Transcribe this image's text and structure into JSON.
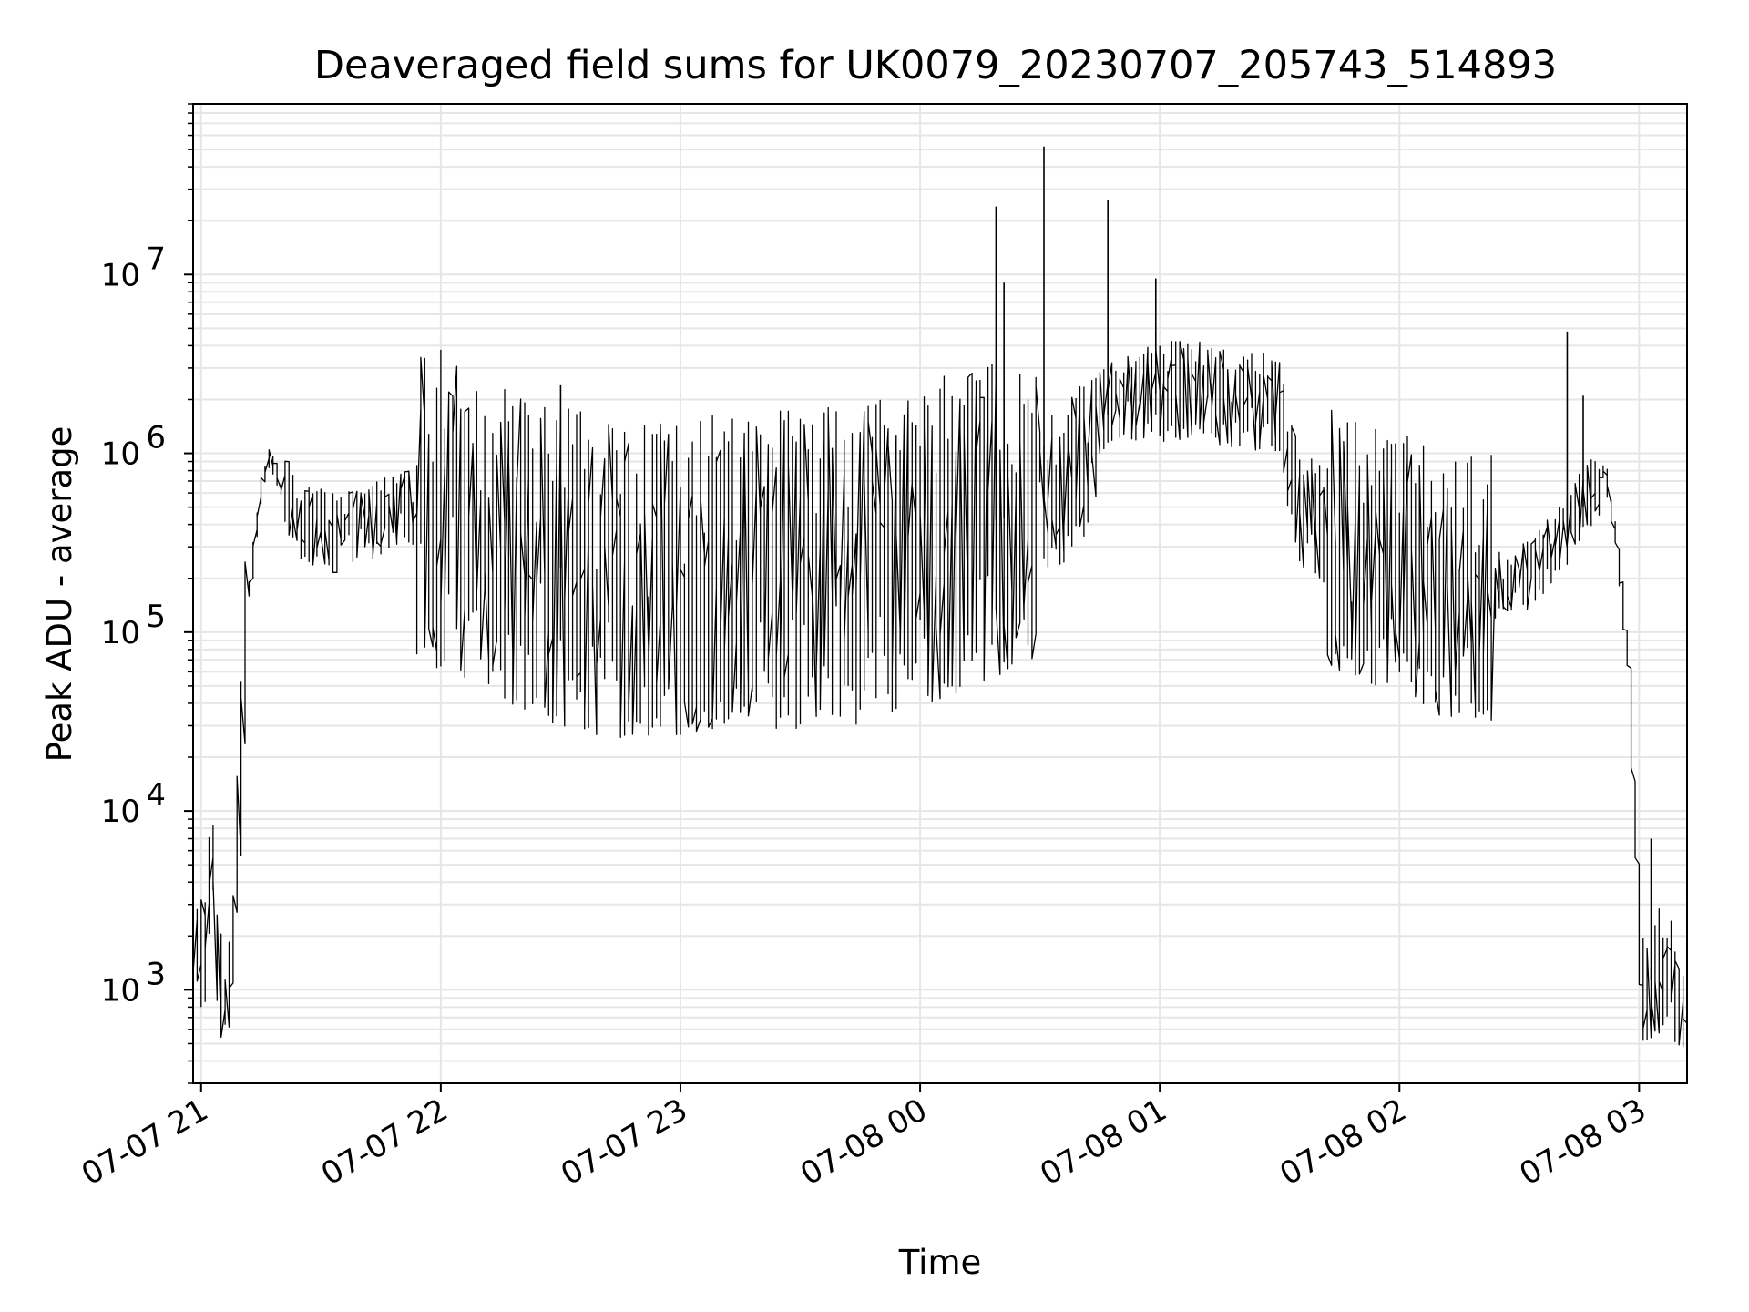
{
  "chart_data": {
    "type": "line",
    "title": "Deaveraged field sums for UK0079_20230707_205743_514893",
    "xlabel": "Time",
    "ylabel": "Peak ADU - average",
    "y_scale": "log",
    "ylim": [
      300,
      90000000
    ],
    "xlim": [
      "2023-07-07 20:58",
      "2023-07-08 03:12"
    ],
    "grid": true,
    "line_color": "#000000",
    "grid_color": "#e6e6e6",
    "x_ticks": [
      {
        "value": "2023-07-07 21:00",
        "label": "07-07 21"
      },
      {
        "value": "2023-07-07 22:00",
        "label": "07-07 22"
      },
      {
        "value": "2023-07-07 23:00",
        "label": "07-07 23"
      },
      {
        "value": "2023-07-08 00:00",
        "label": "07-08 00"
      },
      {
        "value": "2023-07-08 01:00",
        "label": "07-08 01"
      },
      {
        "value": "2023-07-08 02:00",
        "label": "07-08 02"
      },
      {
        "value": "2023-07-08 03:00",
        "label": "07-08 03"
      }
    ],
    "y_ticks": [
      {
        "value": 1000,
        "base": "10",
        "exp": "3"
      },
      {
        "value": 10000,
        "base": "10",
        "exp": "4"
      },
      {
        "value": 100000,
        "base": "10",
        "exp": "5"
      },
      {
        "value": 1000000,
        "base": "10",
        "exp": "6"
      },
      {
        "value": 10000000,
        "base": "10",
        "exp": "7"
      }
    ],
    "series": [
      {
        "points": [
          [
            "2023-07-07 20:58",
            1600
          ],
          [
            "2023-07-07 21:00",
            1700
          ],
          [
            "2023-07-07 21:02",
            1500
          ],
          [
            "2023-07-07 21:03",
            8000
          ],
          [
            "2023-07-07 21:04",
            1900
          ],
          [
            "2023-07-07 21:06",
            900
          ],
          [
            "2023-07-07 21:08",
            1000
          ],
          [
            "2023-07-07 21:10",
            10000
          ],
          [
            "2023-07-07 21:12",
            140000
          ],
          [
            "2023-07-07 21:15",
            500000
          ],
          [
            "2023-07-07 21:17",
            870000
          ],
          [
            "2023-07-07 21:18",
            950000
          ],
          [
            "2023-07-07 21:20",
            650000
          ],
          [
            "2023-07-07 21:25",
            420000
          ],
          [
            "2023-07-07 21:35",
            350000
          ],
          [
            "2023-07-07 21:50",
            500000
          ],
          [
            "2023-07-07 22:00",
            500000
          ],
          [
            "2023-07-07 22:15",
            300000
          ],
          [
            "2023-07-07 22:30",
            230000
          ],
          [
            "2023-07-07 22:45",
            200000
          ],
          [
            "2023-07-07 23:00",
            210000
          ],
          [
            "2023-07-07 23:15",
            230000
          ],
          [
            "2023-07-07 23:30",
            230000
          ],
          [
            "2023-07-07 23:45",
            240000
          ],
          [
            "2023-07-08 00:00",
            300000
          ],
          [
            "2023-07-08 00:15",
            400000
          ],
          [
            "2023-07-08 00:30",
            500000
          ],
          [
            "2023-07-08 00:40",
            800000
          ],
          [
            "2023-07-08 00:45",
            1500000
          ],
          [
            "2023-07-08 00:50",
            1900000
          ],
          [
            "2023-07-08 01:00",
            2200000
          ],
          [
            "2023-07-08 01:10",
            2300000
          ],
          [
            "2023-07-08 01:20",
            2000000
          ],
          [
            "2023-07-08 01:30",
            1900000
          ],
          [
            "2023-07-08 01:32",
            1200000
          ],
          [
            "2023-07-08 01:35",
            500000
          ],
          [
            "2023-07-08 01:45",
            320000
          ],
          [
            "2023-07-08 02:00",
            240000
          ],
          [
            "2023-07-08 02:15",
            170000
          ],
          [
            "2023-07-08 02:30",
            180000
          ],
          [
            "2023-07-08 02:40",
            300000
          ],
          [
            "2023-07-08 02:48",
            600000
          ],
          [
            "2023-07-08 02:52",
            800000
          ],
          [
            "2023-07-08 02:55",
            300000
          ],
          [
            "2023-07-08 02:58",
            60000
          ],
          [
            "2023-07-08 03:00",
            5000
          ],
          [
            "2023-07-08 03:01",
            1000
          ],
          [
            "2023-07-08 03:04",
            1200
          ],
          [
            "2023-07-08 03:08",
            1400
          ],
          [
            "2023-07-08 03:12",
            650
          ]
        ],
        "spikes": [
          [
            "2023-07-07 21:03",
            8000
          ],
          [
            "2023-07-07 22:30",
            2400000
          ],
          [
            "2023-07-08 00:19",
            24000000
          ],
          [
            "2023-07-08 00:21",
            9000000
          ],
          [
            "2023-07-08 00:31",
            52000000
          ],
          [
            "2023-07-08 00:47",
            26000000
          ],
          [
            "2023-07-08 00:59",
            9500000
          ],
          [
            "2023-07-08 02:42",
            4800000
          ],
          [
            "2023-07-08 02:46",
            2100000
          ],
          [
            "2023-07-08 03:03",
            7000
          ]
        ]
      }
    ]
  }
}
